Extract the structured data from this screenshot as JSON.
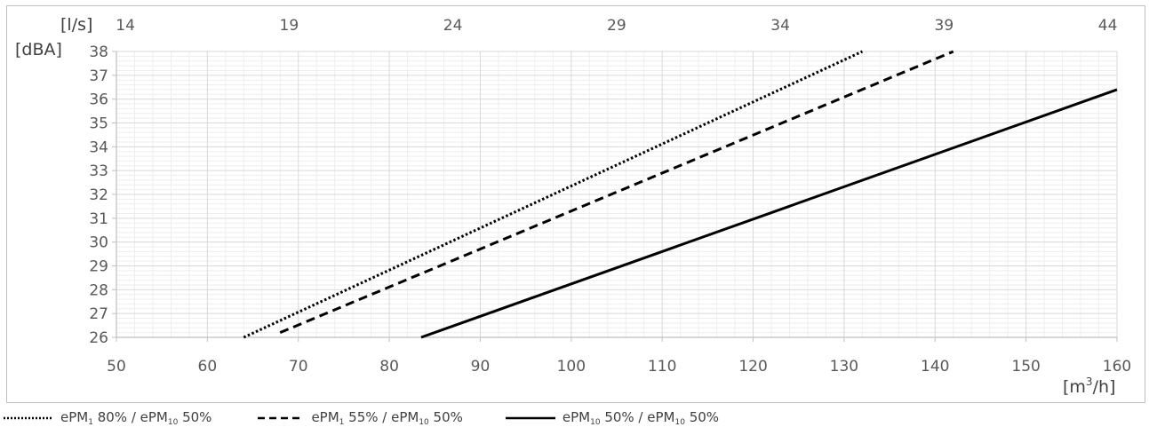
{
  "chart_data": {
    "type": "line",
    "xlabel_unit_base": "[m",
    "xlabel_unit_sup": "3",
    "xlabel_unit_tail": "/h]",
    "x2label_unit": "[l/s]",
    "ylabel_unit": "[dBA]",
    "xlim": [
      50,
      160
    ],
    "ylim": [
      26,
      38
    ],
    "x_ticks": [
      50,
      60,
      70,
      80,
      90,
      100,
      110,
      120,
      130,
      140,
      150,
      160
    ],
    "x2_ticks": [
      14,
      19,
      24,
      29,
      34,
      39,
      44
    ],
    "x2_tick_positions_m3h": [
      50.4,
      68.4,
      86.4,
      104.4,
      122.4,
      140.4,
      158.4
    ],
    "y_ticks": [
      26,
      27,
      28,
      29,
      30,
      31,
      32,
      33,
      34,
      35,
      36,
      37,
      38
    ],
    "grid": true,
    "legend_position": "bottom",
    "series": [
      {
        "name_parts": [
          "ePM",
          "1",
          " 80% / ePM",
          "10",
          " 50%"
        ],
        "style": "dotted",
        "x": [
          64,
          132
        ],
        "y": [
          26,
          38
        ]
      },
      {
        "name_parts": [
          "ePM",
          "1",
          " 55% / ePM",
          "10",
          " 50%"
        ],
        "style": "dashed",
        "x": [
          68,
          142
        ],
        "y": [
          26.2,
          38
        ]
      },
      {
        "name_parts": [
          "ePM",
          "10",
          " 50% / ePM",
          "10",
          " 50%"
        ],
        "style": "solid",
        "x": [
          83.5,
          160
        ],
        "y": [
          26,
          36.4
        ]
      }
    ]
  },
  "colors": {
    "line": "#000000",
    "grid_major": "#d9d9d9",
    "grid_minor": "#eeeeee",
    "axis": "#bfbfbf"
  }
}
